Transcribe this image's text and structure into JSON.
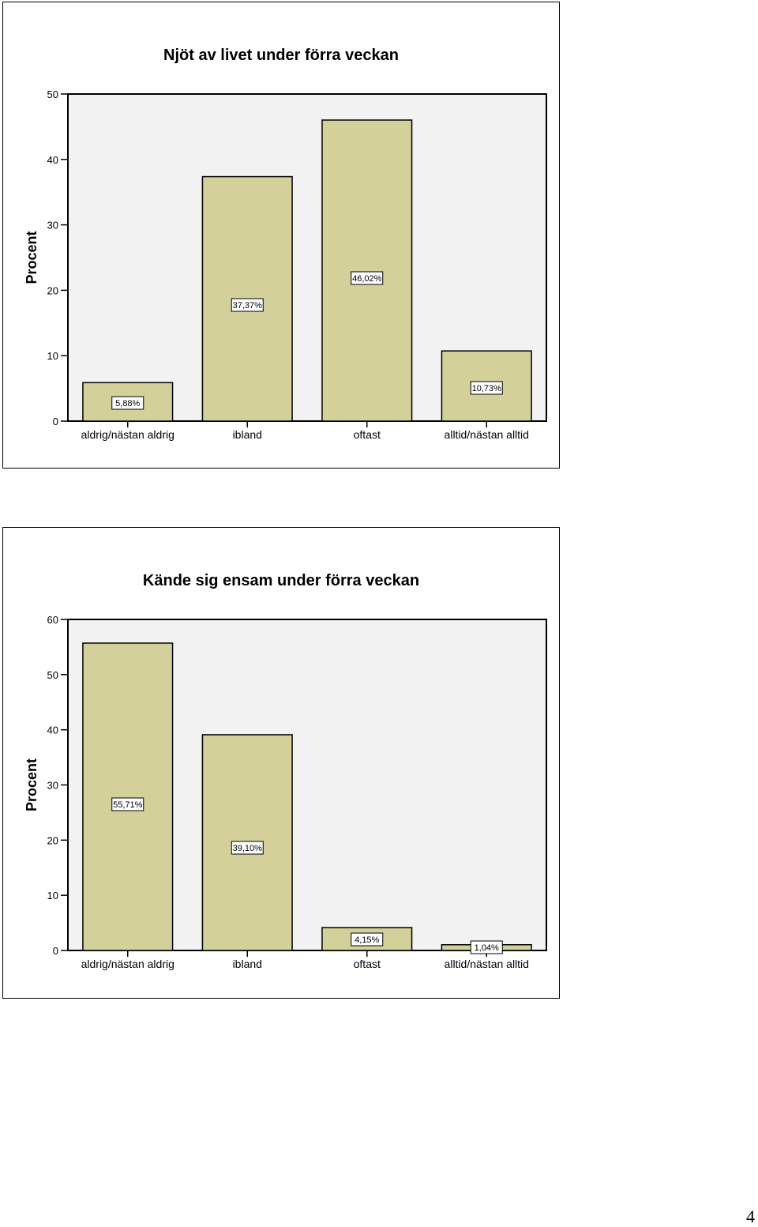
{
  "page": {
    "page_number": "4"
  },
  "chart_data": [
    {
      "type": "bar",
      "title": "Njöt av livet under förra veckan",
      "xlabel": "",
      "ylabel": "Procent",
      "categories": [
        "aldrig/nästan aldrig",
        "ibland",
        "oftast",
        "alltid/nästan alltid"
      ],
      "values": [
        5.88,
        37.37,
        46.02,
        10.73
      ],
      "data_labels": [
        "5,88%",
        "37,37%",
        "46,02%",
        "10,73%"
      ],
      "ylim": [
        0,
        50
      ],
      "yticks": [
        0,
        10,
        20,
        30,
        40,
        50
      ],
      "colors": {
        "bar": "#d3d09a",
        "plot_bg": "#f2f2f2"
      },
      "grid": false,
      "legend": "none"
    },
    {
      "type": "bar",
      "title": "Kände sig ensam under förra veckan",
      "xlabel": "",
      "ylabel": "Procent",
      "categories": [
        "aldrig/nästan aldrig",
        "ibland",
        "oftast",
        "alltid/nästan alltid"
      ],
      "values": [
        55.71,
        39.1,
        4.15,
        1.04
      ],
      "data_labels": [
        "55,71%",
        "39,10%",
        "4,15%",
        "1,04%"
      ],
      "ylim": [
        0,
        60
      ],
      "yticks": [
        0,
        10,
        20,
        30,
        40,
        50,
        60
      ],
      "colors": {
        "bar": "#d3d09a",
        "plot_bg": "#f2f2f2"
      },
      "grid": false,
      "legend": "none"
    }
  ]
}
